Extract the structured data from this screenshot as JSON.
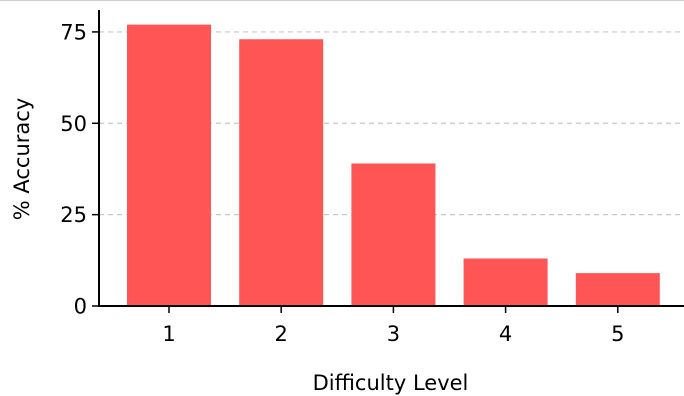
{
  "chart_data": {
    "type": "bar",
    "title": "",
    "xlabel": "Difficulty Level",
    "ylabel": "% Accuracy",
    "categories": [
      "1",
      "2",
      "3",
      "4",
      "5"
    ],
    "values": [
      77,
      73,
      39,
      13,
      9
    ],
    "ylim": [
      0,
      81
    ],
    "yticks": [
      0,
      25,
      50,
      75
    ],
    "grid": "horizontal dashed",
    "bar_color": "#ff5555",
    "grid_color": "#c8c8c8",
    "axis_color": "#000000"
  }
}
